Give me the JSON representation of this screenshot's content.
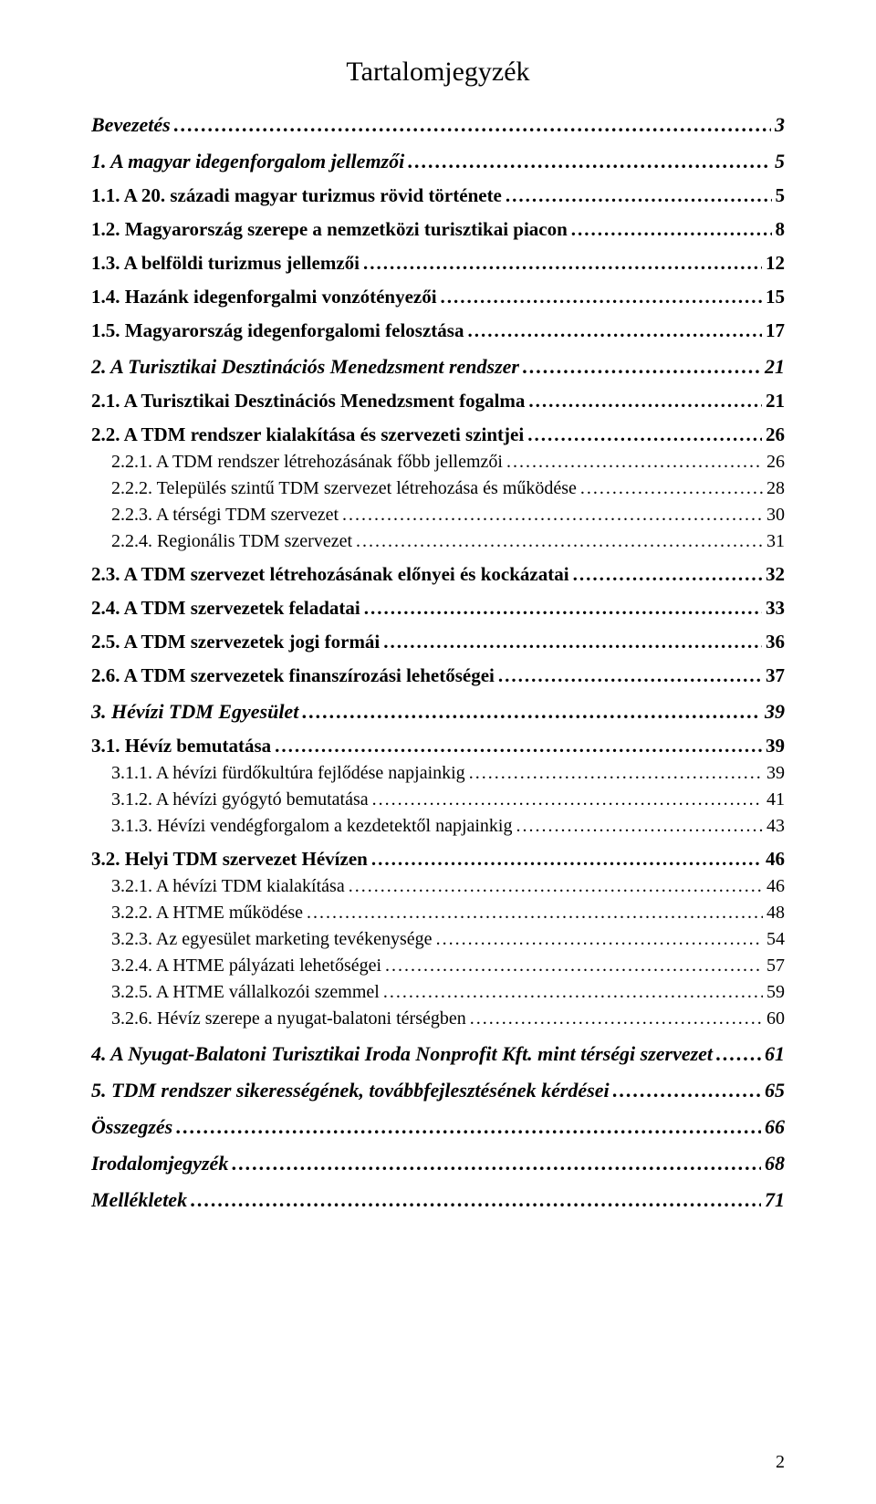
{
  "title": "Tartalomjegyzék",
  "page_number": "2",
  "entries": [
    {
      "level": 0,
      "label": "Bevezetés",
      "page": "3"
    },
    {
      "level": 0,
      "label": "1. A magyar idegenforgalom jellemzői",
      "page": "5"
    },
    {
      "level": 1,
      "label": "1.1. A 20. századi magyar turizmus rövid története",
      "page": "5"
    },
    {
      "level": 1,
      "label": "1.2. Magyarország szerepe a nemzetközi turisztikai piacon",
      "page": "8"
    },
    {
      "level": 1,
      "label": "1.3. A belföldi turizmus jellemzői",
      "page": "12"
    },
    {
      "level": 1,
      "label": "1.4. Hazánk idegenforgalmi vonzótényezői",
      "page": "15"
    },
    {
      "level": 1,
      "label": "1.5. Magyarország idegenforgalomi felosztása",
      "page": "17"
    },
    {
      "level": 0,
      "label": "2. A Turisztikai Desztinációs Menedzsment rendszer",
      "page": "21"
    },
    {
      "level": 1,
      "label": "2.1. A Turisztikai Desztinációs Menedzsment fogalma",
      "page": "21"
    },
    {
      "level": 1,
      "label": "2.2. A TDM rendszer kialakítása és szervezeti szintjei",
      "page": "26"
    },
    {
      "level": 2,
      "label": "2.2.1. A TDM rendszer létrehozásának főbb jellemzői",
      "page": "26"
    },
    {
      "level": 2,
      "label": "2.2.2. Település szintű TDM szervezet létrehozása és működése",
      "page": "28"
    },
    {
      "level": 2,
      "label": "2.2.3. A térségi TDM szervezet",
      "page": "30"
    },
    {
      "level": 2,
      "label": "2.2.4. Regionális TDM szervezet",
      "page": "31"
    },
    {
      "level": 1,
      "label": "2.3. A TDM szervezet létrehozásának előnyei és kockázatai",
      "page": "32"
    },
    {
      "level": 1,
      "label": "2.4. A TDM szervezetek feladatai",
      "page": "33"
    },
    {
      "level": 1,
      "label": "2.5. A TDM szervezetek jogi formái",
      "page": "36"
    },
    {
      "level": 1,
      "label": "2.6. A TDM szervezetek finanszírozási lehetőségei",
      "page": "37"
    },
    {
      "level": 0,
      "label": "3. Hévízi TDM Egyesület",
      "page": "39"
    },
    {
      "level": 1,
      "label": "3.1. Hévíz bemutatása",
      "page": "39"
    },
    {
      "level": 2,
      "label": "3.1.1. A hévízi fürdőkultúra fejlődése napjainkig",
      "page": "39"
    },
    {
      "level": 2,
      "label": "3.1.2. A hévízi gyógytó bemutatása",
      "page": "41"
    },
    {
      "level": 2,
      "label": "3.1.3. Hévízi vendégforgalom a kezdetektől napjainkig",
      "page": "43"
    },
    {
      "level": 1,
      "label": "3.2. Helyi TDM szervezet Hévízen",
      "page": "46"
    },
    {
      "level": 2,
      "label": "3.2.1. A hévízi TDM kialakítása",
      "page": "46"
    },
    {
      "level": 2,
      "label": "3.2.2. A HTME működése",
      "page": "48"
    },
    {
      "level": 2,
      "label": "3.2.3. Az egyesület marketing tevékenysége",
      "page": "54"
    },
    {
      "level": 2,
      "label": "3.2.4. A HTME pályázati lehetőségei",
      "page": "57"
    },
    {
      "level": 2,
      "label": "3.2.5. A HTME vállalkozói szemmel",
      "page": "59"
    },
    {
      "level": 2,
      "label": "3.2.6. Hévíz szerepe a nyugat-balatoni térségben",
      "page": "60"
    },
    {
      "level": 0,
      "label": "4. A Nyugat-Balatoni Turisztikai Iroda Nonprofit Kft. mint térségi szervezet",
      "page": "61"
    },
    {
      "level": 0,
      "label": "5. TDM rendszer sikerességének, továbbfejlesztésének kérdései",
      "page": "65"
    },
    {
      "level": 0,
      "label": "Összegzés",
      "page": "66"
    },
    {
      "level": 0,
      "label": "Irodalomjegyzék",
      "page": "68"
    },
    {
      "level": 0,
      "label": "Mellékletek",
      "page": "71"
    }
  ]
}
